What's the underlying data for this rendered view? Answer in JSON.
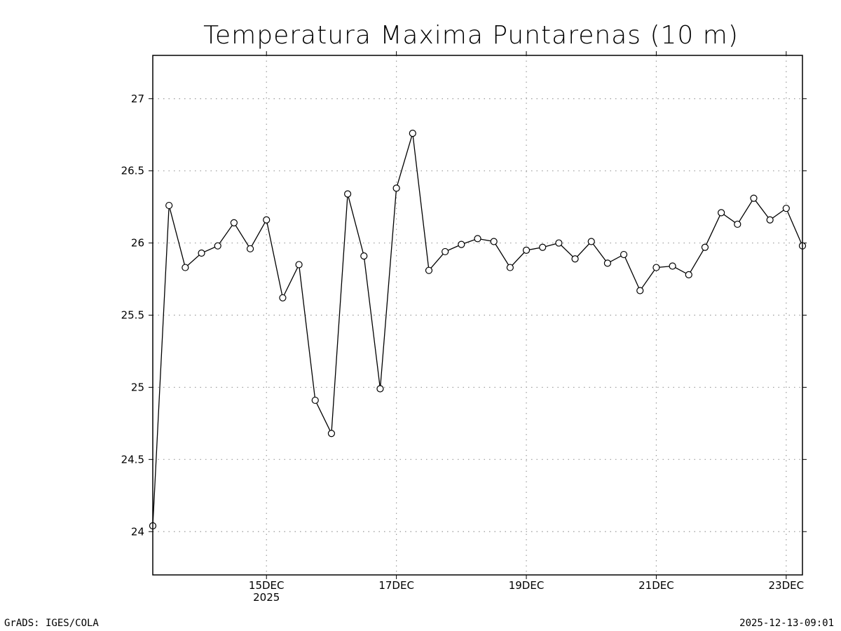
{
  "chart_data": {
    "type": "line",
    "title": "Temperatura Maxima Puntarenas (10 m)",
    "xlabel": "",
    "ylabel": "",
    "ylim": [
      23.7,
      27.3
    ],
    "yticks": [
      24,
      24.5,
      25,
      25.5,
      26,
      26.5,
      27
    ],
    "ytick_labels": [
      "24",
      "24.5",
      "25",
      "25.5",
      "26",
      "26.5",
      "27"
    ],
    "x_unit": "days since 13DEC2025 00Z (6-hourly steps)",
    "xlim": [
      0.25,
      10.25
    ],
    "xticks": [
      {
        "x": 2,
        "label": "15DEC",
        "sublabel": "2025"
      },
      {
        "x": 4,
        "label": "17DEC",
        "sublabel": ""
      },
      {
        "x": 6,
        "label": "19DEC",
        "sublabel": ""
      },
      {
        "x": 8,
        "label": "21DEC",
        "sublabel": ""
      },
      {
        "x": 10,
        "label": "23DEC",
        "sublabel": ""
      }
    ],
    "grid": true,
    "x": [
      0.25,
      0.5,
      0.75,
      1.0,
      1.25,
      1.5,
      1.75,
      2.0,
      2.25,
      2.5,
      2.75,
      3.0,
      3.25,
      3.5,
      3.75,
      4.0,
      4.25,
      4.5,
      4.75,
      5.0,
      5.25,
      5.5,
      5.75,
      6.0,
      6.25,
      6.5,
      6.75,
      7.0,
      7.25,
      7.5,
      7.75,
      8.0,
      8.25,
      8.5,
      8.75,
      9.0,
      9.25,
      9.5,
      9.75,
      10.0,
      10.25
    ],
    "series": [
      {
        "name": "Temperatura Maxima",
        "values": [
          24.04,
          26.26,
          25.83,
          25.93,
          25.98,
          26.14,
          25.96,
          26.16,
          25.62,
          25.85,
          24.91,
          24.68,
          26.34,
          25.91,
          24.99,
          26.38,
          26.76,
          25.81,
          25.94,
          25.99,
          26.03,
          26.01,
          25.83,
          25.95,
          25.97,
          26.0,
          25.89,
          26.01,
          25.86,
          25.92,
          25.67,
          25.83,
          25.84,
          25.78,
          25.97,
          26.21,
          26.13,
          26.31,
          26.16,
          26.24,
          25.98
        ]
      }
    ]
  },
  "footer": {
    "left": "GrADS: IGES/COLA",
    "right": "2025-12-13-09:01"
  }
}
